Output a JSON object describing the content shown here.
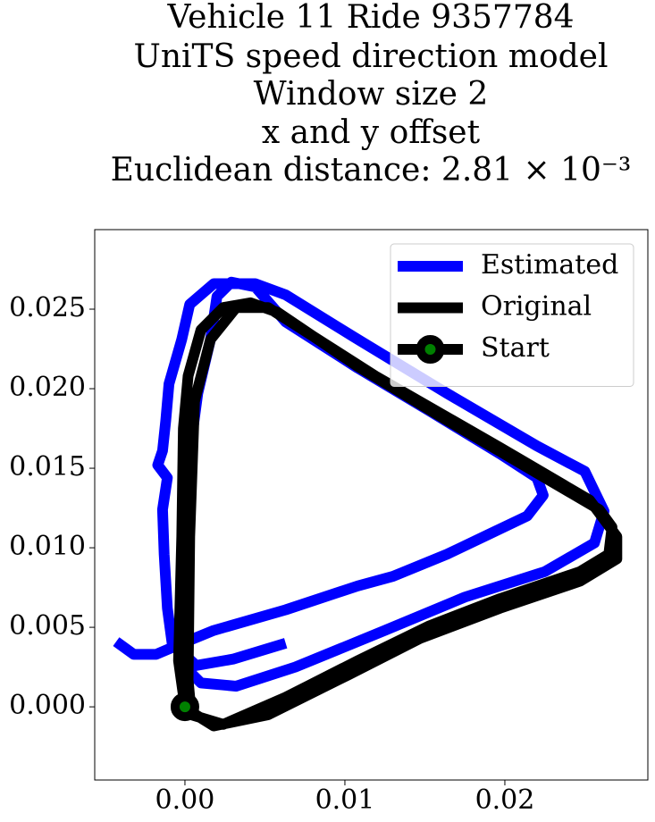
{
  "chart_data": {
    "type": "line",
    "title": [
      "Vehicle 11 Ride 9357784",
      "UniTS speed direction model",
      "Window size 2",
      "x and y offset",
      "Euclidean distance: 2.81 × 10⁻³"
    ],
    "xlim": [
      -0.00564,
      0.02894
    ],
    "ylim": [
      -0.0046,
      0.03
    ],
    "xticks": [
      {
        "value": 0,
        "label": "0.00"
      },
      {
        "value": 0.01,
        "label": "0.01"
      },
      {
        "value": 0.02,
        "label": "0.02"
      }
    ],
    "yticks": [
      {
        "value": 0,
        "label": "0.000"
      },
      {
        "value": 0.005,
        "label": "0.005"
      },
      {
        "value": 0.01,
        "label": "0.010"
      },
      {
        "value": 0.015,
        "label": "0.015"
      },
      {
        "value": 0.02,
        "label": "0.020"
      },
      {
        "value": 0.025,
        "label": "0.025"
      }
    ],
    "grid": false,
    "legend": "upper right",
    "series": [
      {
        "name": "Estimated",
        "color": "#0000ff",
        "x": [
          -0.0043,
          -0.0032,
          -0.0018,
          -0.0004,
          0.0018,
          0.0063,
          0.0108,
          0.013,
          0.0164,
          0.0189,
          0.0214,
          0.0224,
          0.022,
          0.0197,
          0.0153,
          0.0108,
          0.0063,
          0.0044,
          0.0029,
          0.002,
          0.0016,
          0.0008,
          0.0002,
          -0.0001,
          -0.0002,
          -0.0001,
          0.001,
          0.0032,
          0.0069,
          0.0125,
          0.0175,
          0.0225,
          0.0256,
          0.0262,
          0.025,
          0.022,
          0.0164,
          0.0108,
          0.0063,
          0.0044,
          0.0018,
          0.0003,
          -0.0002,
          -0.001,
          -0.0012,
          -0.0014,
          -0.0017,
          -0.0011,
          -0.0014,
          -0.0013,
          -0.0011,
          -0.0008,
          0.0007,
          0.003,
          0.0063
        ],
        "values": [
          0.0041,
          0.0033,
          0.0033,
          0.0039,
          0.0048,
          0.0061,
          0.0076,
          0.0082,
          0.0096,
          0.0108,
          0.012,
          0.0133,
          0.0144,
          0.0159,
          0.0186,
          0.0213,
          0.0242,
          0.0264,
          0.0267,
          0.0258,
          0.0231,
          0.0197,
          0.0152,
          0.0107,
          0.0062,
          0.0026,
          0.0015,
          0.0013,
          0.0025,
          0.0048,
          0.0069,
          0.0085,
          0.0103,
          0.0123,
          0.0148,
          0.0164,
          0.0197,
          0.0231,
          0.0259,
          0.0266,
          0.0266,
          0.0253,
          0.0231,
          0.0203,
          0.018,
          0.0161,
          0.0152,
          0.0144,
          0.0124,
          0.0096,
          0.0062,
          0.004,
          0.0026,
          0.003,
          0.004
        ]
      },
      {
        "name": "Original",
        "color": "#000000",
        "x": [
          0,
          -0.0004,
          -0.0002,
          -0.0001,
          0.0002,
          0.001,
          0.0024,
          0.0041,
          0.0058,
          0.0108,
          0.0164,
          0.022,
          0.0259,
          0.0267,
          0.0265,
          0.0247,
          0.0197,
          0.0153,
          0.0108,
          0.0063,
          0.0024,
          0.0004,
          0.0002,
          0.0003,
          0.0006,
          0.0016,
          0.0032,
          0.0052,
          0.0119,
          0.0197,
          0.0253,
          0.027,
          0.027,
          0.0247,
          0.0197,
          0.0147,
          0.0102,
          0.0052,
          0.0018,
          0.0002
        ],
        "values": [
          0,
          0.0029,
          0.0107,
          0.0175,
          0.0208,
          0.0237,
          0.0251,
          0.0254,
          0.0248,
          0.0214,
          0.018,
          0.0147,
          0.0124,
          0.0113,
          0.0096,
          0.0085,
          0.0068,
          0.0051,
          0.0029,
          0.0006,
          -0.0011,
          -0.0005,
          0.0017,
          0.0107,
          0.0192,
          0.0231,
          0.0251,
          0.0251,
          0.0208,
          0.0163,
          0.013,
          0.0107,
          0.0093,
          0.0079,
          0.0062,
          0.0043,
          0.002,
          -0.0005,
          -0.0012,
          -0.0002
        ]
      },
      {
        "name": "Start",
        "color": "#000000",
        "marker_color": "#008000",
        "x": [
          0
        ],
        "values": [
          0
        ]
      }
    ]
  }
}
